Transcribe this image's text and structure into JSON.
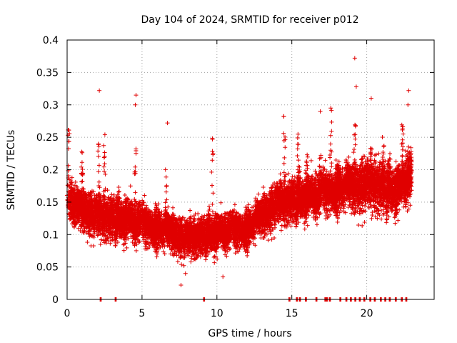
{
  "chart_data": {
    "type": "scatter",
    "title": "Day 104 of 2024, SRMTID for receiver p012",
    "xlabel": "GPS time / hours",
    "ylabel": "SRMTID / TECUs",
    "xlim": [
      0,
      24.5
    ],
    "ylim": [
      0,
      0.4
    ],
    "xticks": [
      0,
      5,
      10,
      15,
      20
    ],
    "xtick_labels": [
      "0",
      "5",
      "10",
      "15",
      "20"
    ],
    "yticks": [
      0,
      0.05,
      0.1,
      0.15,
      0.2,
      0.25,
      0.3,
      0.35,
      0.4
    ],
    "ytick_labels": [
      "0",
      "0.05",
      "0.1",
      "0.15",
      "0.2",
      "0.25",
      "0.3",
      "0.35",
      "0.4"
    ],
    "grid": true,
    "marker": "+",
    "color": "#e00000",
    "series_description": "dense red plus-sign scatter; approx. 2000 points",
    "trend": [
      {
        "x": 0.0,
        "center": 0.15,
        "spread": 0.045
      },
      {
        "x": 2.0,
        "center": 0.13,
        "spread": 0.05
      },
      {
        "x": 4.0,
        "center": 0.125,
        "spread": 0.05
      },
      {
        "x": 6.0,
        "center": 0.11,
        "spread": 0.045
      },
      {
        "x": 8.0,
        "center": 0.095,
        "spread": 0.04
      },
      {
        "x": 10.0,
        "center": 0.105,
        "spread": 0.04
      },
      {
        "x": 12.0,
        "center": 0.11,
        "spread": 0.04
      },
      {
        "x": 14.0,
        "center": 0.15,
        "spread": 0.05
      },
      {
        "x": 16.0,
        "center": 0.16,
        "spread": 0.05
      },
      {
        "x": 18.0,
        "center": 0.17,
        "spread": 0.055
      },
      {
        "x": 20.0,
        "center": 0.18,
        "spread": 0.065
      },
      {
        "x": 22.0,
        "center": 0.17,
        "spread": 0.06
      },
      {
        "x": 23.0,
        "center": 0.2,
        "spread": 0.06
      }
    ],
    "outliers": [
      {
        "x": 2.15,
        "y": 0.322
      },
      {
        "x": 4.6,
        "y": 0.315
      },
      {
        "x": 4.55,
        "y": 0.3
      },
      {
        "x": 6.7,
        "y": 0.272
      },
      {
        "x": 9.7,
        "y": 0.247
      },
      {
        "x": 19.2,
        "y": 0.372
      },
      {
        "x": 19.3,
        "y": 0.328
      },
      {
        "x": 20.3,
        "y": 0.31
      },
      {
        "x": 22.8,
        "y": 0.322
      },
      {
        "x": 22.75,
        "y": 0.3
      },
      {
        "x": 16.9,
        "y": 0.29
      },
      {
        "x": 7.6,
        "y": 0.022
      },
      {
        "x": 10.4,
        "y": 0.035
      },
      {
        "x": 7.9,
        "y": 0.04
      }
    ],
    "zero_values_x": [
      2.2,
      3.2,
      9.1,
      14.8,
      15.3,
      15.5,
      15.9,
      16.6,
      17.2,
      17.3,
      17.5,
      18.2,
      18.6,
      18.9,
      19.2,
      19.5,
      19.8,
      20.2,
      20.5,
      20.9,
      21.2,
      21.5,
      21.9,
      22.3,
      22.6
    ]
  }
}
